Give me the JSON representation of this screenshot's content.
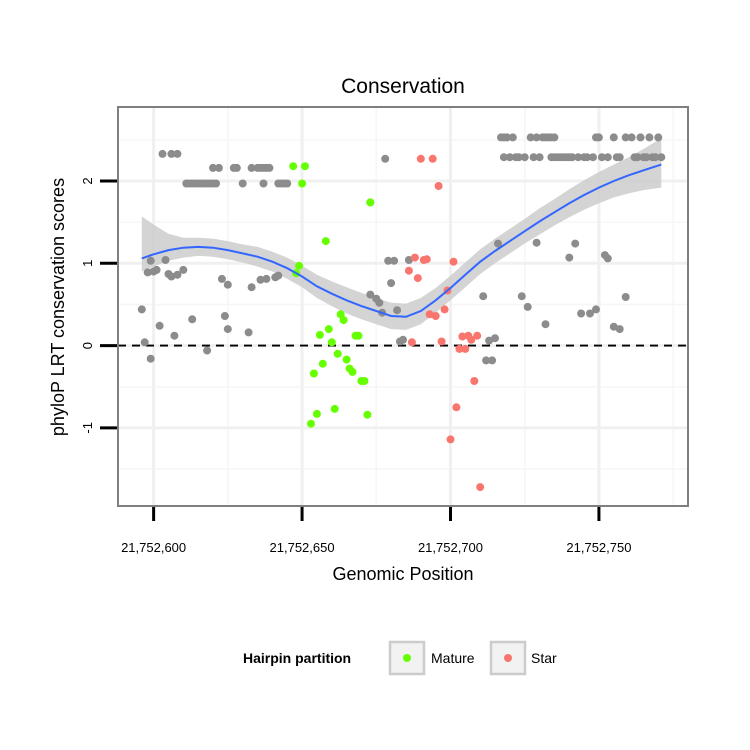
{
  "chart_data": {
    "type": "scatter",
    "title": "Conservation",
    "xlabel": "Genomic Position",
    "ylabel": "phyloP LRT conservation scores",
    "xlim": [
      21752588,
      21752780
    ],
    "ylim": [
      -1.95,
      2.9
    ],
    "x_ticks": [
      {
        "value": 21752600,
        "label": "21,752,600"
      },
      {
        "value": 21752650,
        "label": "21,752,650"
      },
      {
        "value": 21752700,
        "label": "21,752,700"
      },
      {
        "value": 21752750,
        "label": "21,752,750"
      }
    ],
    "y_ticks": [
      {
        "value": -1,
        "label": "-1"
      },
      {
        "value": 0,
        "label": "0"
      },
      {
        "value": 1,
        "label": "1"
      },
      {
        "value": 2,
        "label": "2"
      }
    ],
    "hline": 0,
    "colors": {
      "other": "#8c8c8c",
      "mature": "#66ff00",
      "star": "#f8766d",
      "smooth": "#3366ff",
      "ribbon": "#cccccc"
    },
    "legend": {
      "title": "Hairpin partition",
      "position": "bottom",
      "entries": [
        {
          "key": "mature",
          "label": "Mature"
        },
        {
          "key": "star",
          "label": "Star"
        }
      ]
    },
    "series": [
      {
        "name": "Other",
        "key": "other",
        "points": [
          [
            21752596,
            0.44
          ],
          [
            21752597,
            0.04
          ],
          [
            21752598,
            0.89
          ],
          [
            21752599,
            1.03
          ],
          [
            21752599,
            -0.16
          ],
          [
            21752600,
            0.9
          ],
          [
            21752601,
            0.92
          ],
          [
            21752602,
            0.24
          ],
          [
            21752603,
            2.33
          ],
          [
            21752604,
            1.04
          ],
          [
            21752605,
            0.87
          ],
          [
            21752606,
            0.84
          ],
          [
            21752606,
            2.33
          ],
          [
            21752607,
            0.12
          ],
          [
            21752608,
            2.33
          ],
          [
            21752608,
            0.86
          ],
          [
            21752610,
            0.92
          ],
          [
            21752611,
            1.97
          ],
          [
            21752612,
            1.97
          ],
          [
            21752613,
            0.32
          ],
          [
            21752613,
            1.97
          ],
          [
            21752614,
            1.97
          ],
          [
            21752615,
            1.97
          ],
          [
            21752616,
            1.97
          ],
          [
            21752617,
            1.97
          ],
          [
            21752618,
            1.97
          ],
          [
            21752618,
            -0.06
          ],
          [
            21752619,
            1.97
          ],
          [
            21752620,
            1.97
          ],
          [
            21752620,
            2.16
          ],
          [
            21752621,
            1.97
          ],
          [
            21752622,
            2.16
          ],
          [
            21752623,
            0.81
          ],
          [
            21752624,
            0.36
          ],
          [
            21752625,
            0.74
          ],
          [
            21752625,
            0.2
          ],
          [
            21752627,
            2.16
          ],
          [
            21752628,
            2.16
          ],
          [
            21752630,
            1.97
          ],
          [
            21752632,
            0.16
          ],
          [
            21752633,
            2.16
          ],
          [
            21752633,
            0.71
          ],
          [
            21752635,
            2.16
          ],
          [
            21752636,
            2.16
          ],
          [
            21752636,
            0.8
          ],
          [
            21752637,
            2.16
          ],
          [
            21752637,
            1.97
          ],
          [
            21752638,
            2.16
          ],
          [
            21752638,
            0.81
          ],
          [
            21752639,
            2.16
          ],
          [
            21752641,
            0.83
          ],
          [
            21752642,
            0.85
          ],
          [
            21752642,
            1.97
          ],
          [
            21752643,
            1.97
          ],
          [
            21752644,
            1.97
          ],
          [
            21752645,
            1.97
          ],
          [
            21752673,
            1.74
          ],
          [
            21752673,
            0.62
          ],
          [
            21752675,
            0.57
          ],
          [
            21752676,
            0.52
          ],
          [
            21752677,
            0.4
          ],
          [
            21752678,
            2.27
          ],
          [
            21752679,
            1.03
          ],
          [
            21752680,
            0.76
          ],
          [
            21752681,
            1.03
          ],
          [
            21752682,
            0.43
          ],
          [
            21752683,
            0.05
          ],
          [
            21752684,
            0.07
          ],
          [
            21752686,
            1.04
          ],
          [
            21752711,
            0.6
          ],
          [
            21752712,
            -0.18
          ],
          [
            21752713,
            0.06
          ],
          [
            21752714,
            -0.18
          ],
          [
            21752715,
            0.09
          ],
          [
            21752716,
            1.24
          ],
          [
            21752717,
            2.53
          ],
          [
            21752718,
            2.53
          ],
          [
            21752718,
            2.29
          ],
          [
            21752719,
            2.53
          ],
          [
            21752720,
            2.29
          ],
          [
            21752721,
            2.53
          ],
          [
            21752722,
            2.29
          ],
          [
            21752723,
            2.29
          ],
          [
            21752724,
            0.6
          ],
          [
            21752725,
            2.29
          ],
          [
            21752726,
            0.47
          ],
          [
            21752727,
            2.53
          ],
          [
            21752728,
            2.29
          ],
          [
            21752729,
            1.25
          ],
          [
            21752729,
            2.53
          ],
          [
            21752730,
            2.29
          ],
          [
            21752731,
            2.53
          ],
          [
            21752732,
            0.26
          ],
          [
            21752732,
            2.53
          ],
          [
            21752733,
            2.53
          ],
          [
            21752734,
            2.53
          ],
          [
            21752734,
            2.29
          ],
          [
            21752735,
            2.53
          ],
          [
            21752735,
            2.29
          ],
          [
            21752736,
            2.29
          ],
          [
            21752737,
            2.29
          ],
          [
            21752738,
            2.29
          ],
          [
            21752739,
            2.29
          ],
          [
            21752740,
            2.29
          ],
          [
            21752740,
            1.07
          ],
          [
            21752741,
            2.29
          ],
          [
            21752742,
            1.24
          ],
          [
            21752743,
            2.29
          ],
          [
            21752744,
            0.39
          ],
          [
            21752745,
            2.29
          ],
          [
            21752746,
            2.29
          ],
          [
            21752747,
            0.39
          ],
          [
            21752748,
            2.29
          ],
          [
            21752749,
            2.53
          ],
          [
            21752749,
            0.44
          ],
          [
            21752750,
            2.53
          ],
          [
            21752751,
            2.29
          ],
          [
            21752752,
            1.1
          ],
          [
            21752753,
            1.06
          ],
          [
            21752753,
            2.29
          ],
          [
            21752755,
            0.23
          ],
          [
            21752755,
            2.53
          ],
          [
            21752756,
            2.29
          ],
          [
            21752757,
            0.2
          ],
          [
            21752757,
            2.29
          ],
          [
            21752759,
            0.59
          ],
          [
            21752759,
            2.53
          ],
          [
            21752761,
            2.53
          ],
          [
            21752762,
            2.29
          ],
          [
            21752763,
            2.29
          ],
          [
            21752764,
            2.53
          ],
          [
            21752765,
            2.29
          ],
          [
            21752766,
            2.29
          ],
          [
            21752767,
            2.53
          ],
          [
            21752768,
            2.29
          ],
          [
            21752769,
            2.29
          ],
          [
            21752770,
            2.53
          ],
          [
            21752771,
            2.29
          ]
        ]
      },
      {
        "name": "Mature",
        "key": "mature",
        "points": [
          [
            21752647,
            2.18
          ],
          [
            21752648,
            0.88
          ],
          [
            21752649,
            0.97
          ],
          [
            21752650,
            1.97
          ],
          [
            21752651,
            2.18
          ],
          [
            21752653,
            -0.95
          ],
          [
            21752654,
            -0.34
          ],
          [
            21752655,
            -0.83
          ],
          [
            21752656,
            0.13
          ],
          [
            21752657,
            -0.22
          ],
          [
            21752658,
            1.27
          ],
          [
            21752659,
            0.2
          ],
          [
            21752660,
            0.04
          ],
          [
            21752661,
            -0.77
          ],
          [
            21752662,
            -0.1
          ],
          [
            21752663,
            0.38
          ],
          [
            21752664,
            0.31
          ],
          [
            21752665,
            -0.17
          ],
          [
            21752666,
            -0.28
          ],
          [
            21752667,
            -0.32
          ],
          [
            21752668,
            0.12
          ],
          [
            21752669,
            0.12
          ],
          [
            21752670,
            -0.43
          ],
          [
            21752671,
            -0.43
          ],
          [
            21752672,
            -0.84
          ],
          [
            21752673,
            1.74
          ]
        ]
      },
      {
        "name": "Star",
        "key": "star",
        "points": [
          [
            21752686,
            0.91
          ],
          [
            21752687,
            0.04
          ],
          [
            21752688,
            1.07
          ],
          [
            21752689,
            0.82
          ],
          [
            21752690,
            2.27
          ],
          [
            21752691,
            1.04
          ],
          [
            21752692,
            1.05
          ],
          [
            21752693,
            0.38
          ],
          [
            21752694,
            2.27
          ],
          [
            21752695,
            0.36
          ],
          [
            21752696,
            1.94
          ],
          [
            21752697,
            0.05
          ],
          [
            21752698,
            0.44
          ],
          [
            21752699,
            0.67
          ],
          [
            21752700,
            -1.14
          ],
          [
            21752701,
            1.02
          ],
          [
            21752702,
            -0.75
          ],
          [
            21752703,
            -0.04
          ],
          [
            21752704,
            0.11
          ],
          [
            21752705,
            -0.04
          ],
          [
            21752706,
            0.12
          ],
          [
            21752707,
            0.07
          ],
          [
            21752708,
            -0.43
          ],
          [
            21752709,
            0.12
          ],
          [
            21752710,
            -1.72
          ]
        ]
      }
    ],
    "smooth": {
      "method": "loess",
      "x": [
        21752596,
        21752600,
        21752605,
        21752610,
        21752615,
        21752620,
        21752625,
        21752630,
        21752635,
        21752640,
        21752645,
        21752650,
        21752655,
        21752660,
        21752665,
        21752670,
        21752675,
        21752680,
        21752685,
        21752690,
        21752695,
        21752700,
        21752705,
        21752710,
        21752715,
        21752720,
        21752725,
        21752730,
        21752735,
        21752740,
        21752745,
        21752750,
        21752755,
        21752760,
        21752765,
        21752771
      ],
      "y": [
        1.06,
        1.11,
        1.16,
        1.19,
        1.2,
        1.19,
        1.16,
        1.12,
        1.08,
        1.02,
        0.94,
        0.84,
        0.72,
        0.63,
        0.55,
        0.48,
        0.42,
        0.36,
        0.35,
        0.42,
        0.55,
        0.7,
        0.86,
        1.02,
        1.15,
        1.27,
        1.39,
        1.51,
        1.62,
        1.73,
        1.83,
        1.92,
        2.0,
        2.07,
        2.13,
        2.2
      ],
      "lower": [
        0.9,
        0.96,
        1.03,
        1.07,
        1.09,
        1.08,
        1.05,
        1.01,
        0.96,
        0.9,
        0.81,
        0.71,
        0.58,
        0.48,
        0.39,
        0.32,
        0.26,
        0.2,
        0.19,
        0.26,
        0.4,
        0.55,
        0.71,
        0.87,
        1.0,
        1.12,
        1.24,
        1.35,
        1.46,
        1.56,
        1.65,
        1.73,
        1.8,
        1.85,
        1.89,
        1.92
      ],
      "upper": [
        1.57,
        1.47,
        1.36,
        1.31,
        1.31,
        1.3,
        1.27,
        1.23,
        1.2,
        1.14,
        1.07,
        0.97,
        0.86,
        0.78,
        0.71,
        0.64,
        0.58,
        0.52,
        0.51,
        0.58,
        0.7,
        0.85,
        1.01,
        1.17,
        1.3,
        1.42,
        1.54,
        1.67,
        1.78,
        1.9,
        2.01,
        2.11,
        2.2,
        2.29,
        2.39,
        2.52
      ]
    }
  }
}
